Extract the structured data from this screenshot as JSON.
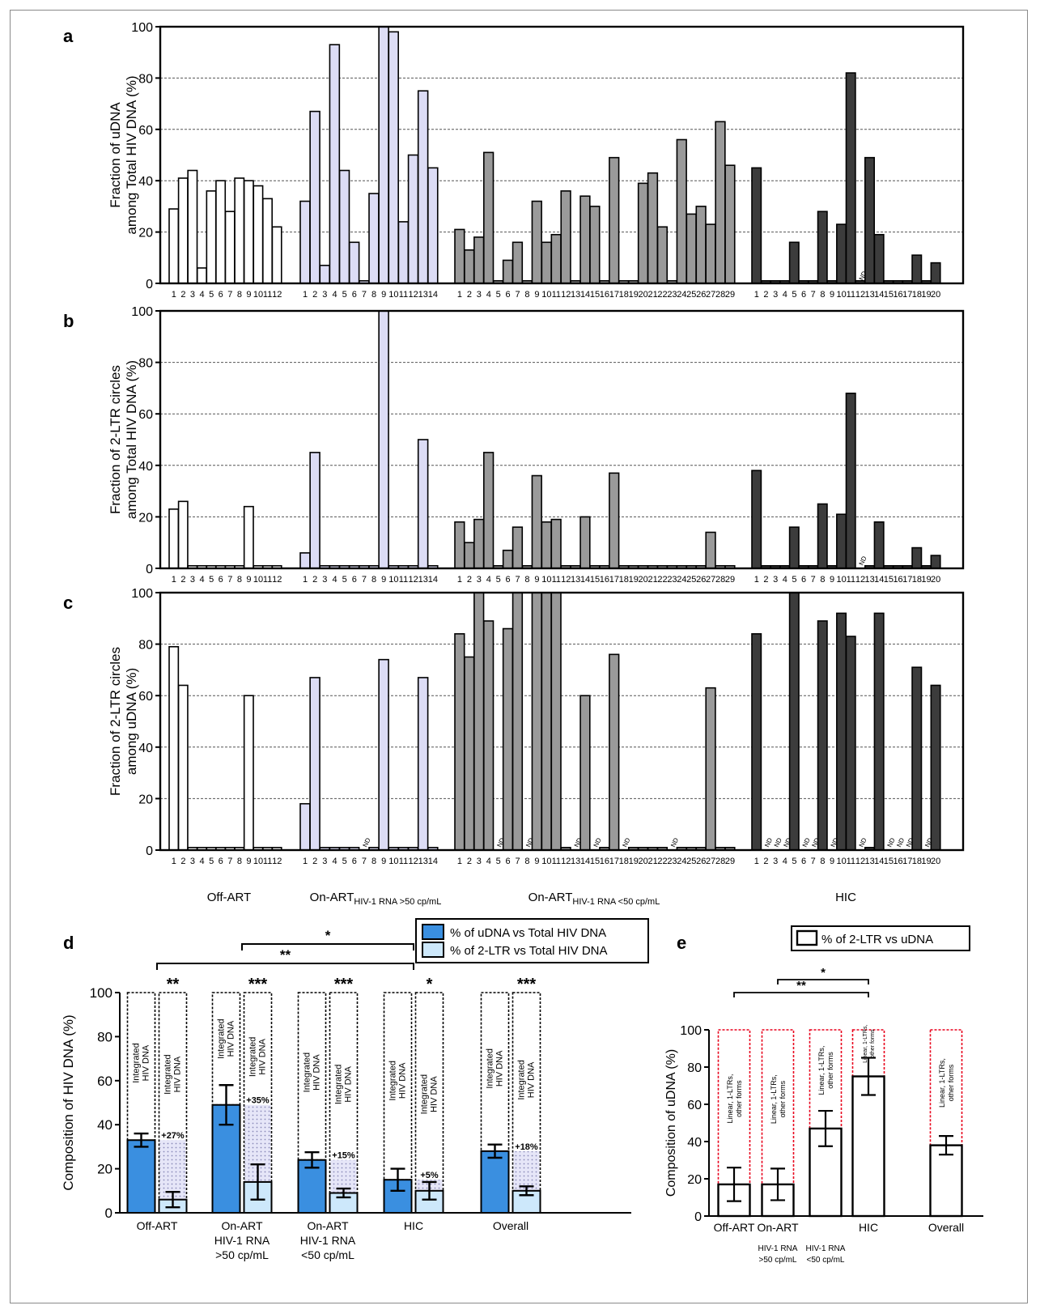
{
  "colors": {
    "offart": "#ffffff",
    "onart50": "#dcdcf5",
    "onartLow": "#9a9a9a",
    "hic": "#3c3c3c",
    "blue": "#3a8fe0",
    "lightblue": "#cde8fb",
    "red": "#e8001c",
    "grid": "#555555"
  },
  "nd_label": "ND",
  "group_labels": {
    "offart": "Off-ART",
    "onart_high": "On-ART",
    "onart_high_sub": "HIV-1 RNA >50 cp/mL",
    "onart_low": "On-ART",
    "onart_low_sub": "HIV-1 RNA <50 cp/mL",
    "hic": "HIC"
  },
  "chart_data": [
    {
      "panel": "a",
      "type": "bar",
      "ylabel": [
        "Fraction of uDNA",
        "among Total HIV DNA (%)"
      ],
      "ylim": [
        0,
        100
      ],
      "yticks": [
        0,
        20,
        40,
        60,
        80,
        100
      ],
      "grid": true,
      "groups": [
        {
          "name": "Off-ART",
          "color": "offart",
          "categories": [
            "1",
            "2",
            "3",
            "4",
            "5",
            "6",
            "7",
            "8",
            "9",
            "10",
            "11",
            "12"
          ],
          "values": [
            29,
            41,
            44,
            6,
            36,
            40,
            28,
            41,
            40,
            38,
            33,
            22
          ],
          "nd": []
        },
        {
          "name": "On-ART HIV-1 RNA >50 cp/mL",
          "color": "onart50",
          "categories": [
            "1",
            "2",
            "3",
            "4",
            "5",
            "6",
            "7",
            "8",
            "9",
            "10",
            "11",
            "12",
            "13",
            "14"
          ],
          "values": [
            32,
            67,
            7,
            93,
            44,
            16,
            1,
            35,
            100,
            98,
            24,
            50,
            75,
            45
          ],
          "nd": []
        },
        {
          "name": "On-ART HIV-1 RNA <50 cp/mL",
          "color": "onartLow",
          "categories": [
            "1",
            "2",
            "3",
            "4",
            "5",
            "6",
            "7",
            "8",
            "9",
            "10",
            "11",
            "12",
            "13",
            "14",
            "15",
            "16",
            "17",
            "18",
            "19",
            "20",
            "21",
            "22",
            "23",
            "24",
            "25",
            "26",
            "27",
            "28",
            "29"
          ],
          "values": [
            21,
            13,
            18,
            51,
            1,
            9,
            16,
            1,
            32,
            16,
            19,
            36,
            1,
            34,
            30,
            1,
            49,
            1,
            1,
            39,
            43,
            22,
            1,
            56,
            27,
            30,
            23,
            63,
            46
          ],
          "nd": []
        },
        {
          "name": "HIC",
          "color": "hic",
          "categories": [
            "1",
            "2",
            "3",
            "4",
            "5",
            "6",
            "7",
            "8",
            "9",
            "10",
            "11",
            "12",
            "13",
            "14",
            "15",
            "16",
            "17",
            "18",
            "19",
            "20"
          ],
          "values": [
            45,
            1,
            1,
            1,
            16,
            1,
            1,
            28,
            1,
            23,
            82,
            1,
            49,
            19,
            1,
            1,
            1,
            11,
            1,
            8
          ],
          "nd": [
            12
          ]
        }
      ]
    },
    {
      "panel": "b",
      "type": "bar",
      "ylabel": [
        "Fraction of 2-LTR circles",
        "among Total HIV DNA (%)"
      ],
      "ylim": [
        0,
        100
      ],
      "yticks": [
        0,
        20,
        40,
        60,
        80,
        100
      ],
      "grid": true,
      "groups": [
        {
          "name": "Off-ART",
          "color": "offart",
          "categories": [
            "1",
            "2",
            "3",
            "4",
            "5",
            "6",
            "7",
            "8",
            "9",
            "10",
            "11",
            "12"
          ],
          "values": [
            23,
            26,
            1,
            1,
            1,
            1,
            1,
            1,
            24,
            1,
            1,
            1
          ],
          "nd": []
        },
        {
          "name": "On-ART HIV-1 RNA >50 cp/mL",
          "color": "onart50",
          "categories": [
            "1",
            "2",
            "3",
            "4",
            "5",
            "6",
            "7",
            "8",
            "9",
            "10",
            "11",
            "12",
            "13",
            "14"
          ],
          "values": [
            6,
            45,
            1,
            1,
            1,
            1,
            1,
            1,
            100,
            1,
            1,
            1,
            50,
            1
          ],
          "nd": []
        },
        {
          "name": "On-ART HIV-1 RNA <50 cp/mL",
          "color": "onartLow",
          "categories": [
            "1",
            "2",
            "3",
            "4",
            "5",
            "6",
            "7",
            "8",
            "9",
            "10",
            "11",
            "12",
            "13",
            "14",
            "15",
            "16",
            "17",
            "18",
            "19",
            "20",
            "21",
            "22",
            "23",
            "24",
            "25",
            "26",
            "27",
            "28",
            "29"
          ],
          "values": [
            18,
            10,
            19,
            45,
            1,
            7,
            16,
            1,
            36,
            18,
            19,
            1,
            1,
            20,
            1,
            1,
            37,
            1,
            1,
            1,
            1,
            1,
            1,
            1,
            1,
            1,
            14,
            1,
            1
          ],
          "nd": []
        },
        {
          "name": "HIC",
          "color": "hic",
          "categories": [
            "1",
            "2",
            "3",
            "4",
            "5",
            "6",
            "7",
            "8",
            "9",
            "10",
            "11",
            "12",
            "13",
            "14",
            "15",
            "16",
            "17",
            "18",
            "19",
            "20"
          ],
          "values": [
            38,
            1,
            1,
            1,
            16,
            1,
            1,
            25,
            1,
            21,
            68,
            0,
            1,
            18,
            1,
            1,
            1,
            8,
            1,
            5
          ],
          "nd": [
            12
          ]
        }
      ]
    },
    {
      "panel": "c",
      "type": "bar",
      "ylabel": [
        "Fraction of 2-LTR circles",
        "among uDNA (%)"
      ],
      "ylim": [
        0,
        100
      ],
      "yticks": [
        0,
        20,
        40,
        60,
        80,
        100
      ],
      "grid": true,
      "groups": [
        {
          "name": "Off-ART",
          "color": "offart",
          "categories": [
            "1",
            "2",
            "3",
            "4",
            "5",
            "6",
            "7",
            "8",
            "9",
            "10",
            "11",
            "12"
          ],
          "values": [
            79,
            64,
            1,
            1,
            1,
            1,
            1,
            1,
            60,
            1,
            1,
            1
          ],
          "nd": []
        },
        {
          "name": "On-ART HIV-1 RNA >50 cp/mL",
          "color": "onart50",
          "categories": [
            "1",
            "2",
            "3",
            "4",
            "5",
            "6",
            "7",
            "8",
            "9",
            "10",
            "11",
            "12",
            "13",
            "14"
          ],
          "values": [
            18,
            67,
            1,
            1,
            1,
            1,
            0,
            1,
            74,
            1,
            1,
            1,
            67,
            1
          ],
          "nd": [
            7
          ]
        },
        {
          "name": "On-ART HIV-1 RNA <50 cp/mL",
          "color": "onartLow",
          "categories": [
            "1",
            "2",
            "3",
            "4",
            "5",
            "6",
            "7",
            "8",
            "9",
            "10",
            "11",
            "12",
            "13",
            "14",
            "15",
            "16",
            "17",
            "18",
            "19",
            "20",
            "21",
            "22",
            "23",
            "24",
            "25",
            "26",
            "27",
            "28",
            "29"
          ],
          "values": [
            84,
            75,
            100,
            89,
            0,
            86,
            100,
            0,
            100,
            100,
            100,
            1,
            0,
            60,
            0,
            1,
            76,
            0,
            1,
            1,
            1,
            1,
            0,
            1,
            1,
            1,
            63,
            1,
            1
          ],
          "nd": [
            5,
            8,
            13,
            15,
            18,
            23
          ]
        },
        {
          "name": "HIC",
          "color": "hic",
          "categories": [
            "1",
            "2",
            "3",
            "4",
            "5",
            "6",
            "7",
            "8",
            "9",
            "10",
            "11",
            "12",
            "13",
            "14",
            "15",
            "16",
            "17",
            "18",
            "19",
            "20"
          ],
          "values": [
            84,
            0,
            0,
            0,
            100,
            0,
            0,
            89,
            0,
            92,
            83,
            0,
            1,
            92,
            0,
            0,
            0,
            71,
            0,
            64
          ],
          "nd": [
            2,
            3,
            4,
            6,
            7,
            9,
            12,
            15,
            16,
            17,
            19
          ]
        }
      ]
    },
    {
      "panel": "d",
      "type": "bar",
      "ylabel": "Composition of HIV DNA (%)",
      "ylim": [
        0,
        100
      ],
      "yticks": [
        0,
        20,
        40,
        60,
        80,
        100
      ],
      "legend": [
        "% of uDNA vs Total HIV DNA",
        "% of 2-LTR vs Total HIV DNA"
      ],
      "categories": [
        [
          "Off-ART"
        ],
        [
          "On-ART",
          "HIV-1 RNA",
          ">50 cp/mL"
        ],
        [
          "On-ART",
          "HIV-1 RNA",
          "<50 cp/mL"
        ],
        [
          "HIC"
        ],
        [
          "Overall"
        ]
      ],
      "series": [
        {
          "name": "% of uDNA vs Total HIV DNA",
          "values": [
            33,
            49,
            24,
            15,
            28
          ],
          "err": [
            3,
            9,
            3.5,
            5,
            3
          ]
        },
        {
          "name": "% of 2-LTR vs Total HIV DNA",
          "values": [
            6,
            14,
            9,
            10,
            10
          ],
          "err": [
            3.5,
            8,
            2,
            4,
            2
          ]
        }
      ],
      "increments": [
        "+27%",
        "+35%",
        "+15%",
        "+5%",
        "+18%"
      ],
      "stars": [
        "**",
        "***",
        "***",
        "*",
        "***"
      ],
      "box_label": "Integrated HIV DNA",
      "brackets": [
        {
          "label": "*",
          "from": 1,
          "to": 3
        },
        {
          "label": "**",
          "from": 0,
          "to": 3
        }
      ]
    },
    {
      "panel": "e",
      "type": "bar",
      "ylabel": "Composition of uDNA (%)",
      "ylim": [
        0,
        100
      ],
      "yticks": [
        0,
        20,
        40,
        60,
        80,
        100
      ],
      "legend": [
        "% of 2-LTR vs uDNA"
      ],
      "categories": [
        [
          "Off-ART"
        ],
        [
          "On-ART",
          "HIV-1 RNA",
          ">50 cp/mL"
        ],
        [
          "",
          "HIV-1 RNA",
          "<50 cp/mL"
        ],
        [
          "HIC"
        ],
        [
          "Overall"
        ]
      ],
      "series": [
        {
          "name": "% of 2-LTR vs uDNA",
          "values": [
            17,
            17,
            47,
            75,
            38
          ],
          "err": [
            9,
            8.5,
            9.5,
            10,
            5
          ]
        }
      ],
      "box_label": "Linear, 1-LTRs, other forms",
      "brackets": [
        {
          "label": "*",
          "from": 1,
          "to": 3
        },
        {
          "label": "**",
          "from": 0,
          "to": 3
        }
      ]
    }
  ]
}
